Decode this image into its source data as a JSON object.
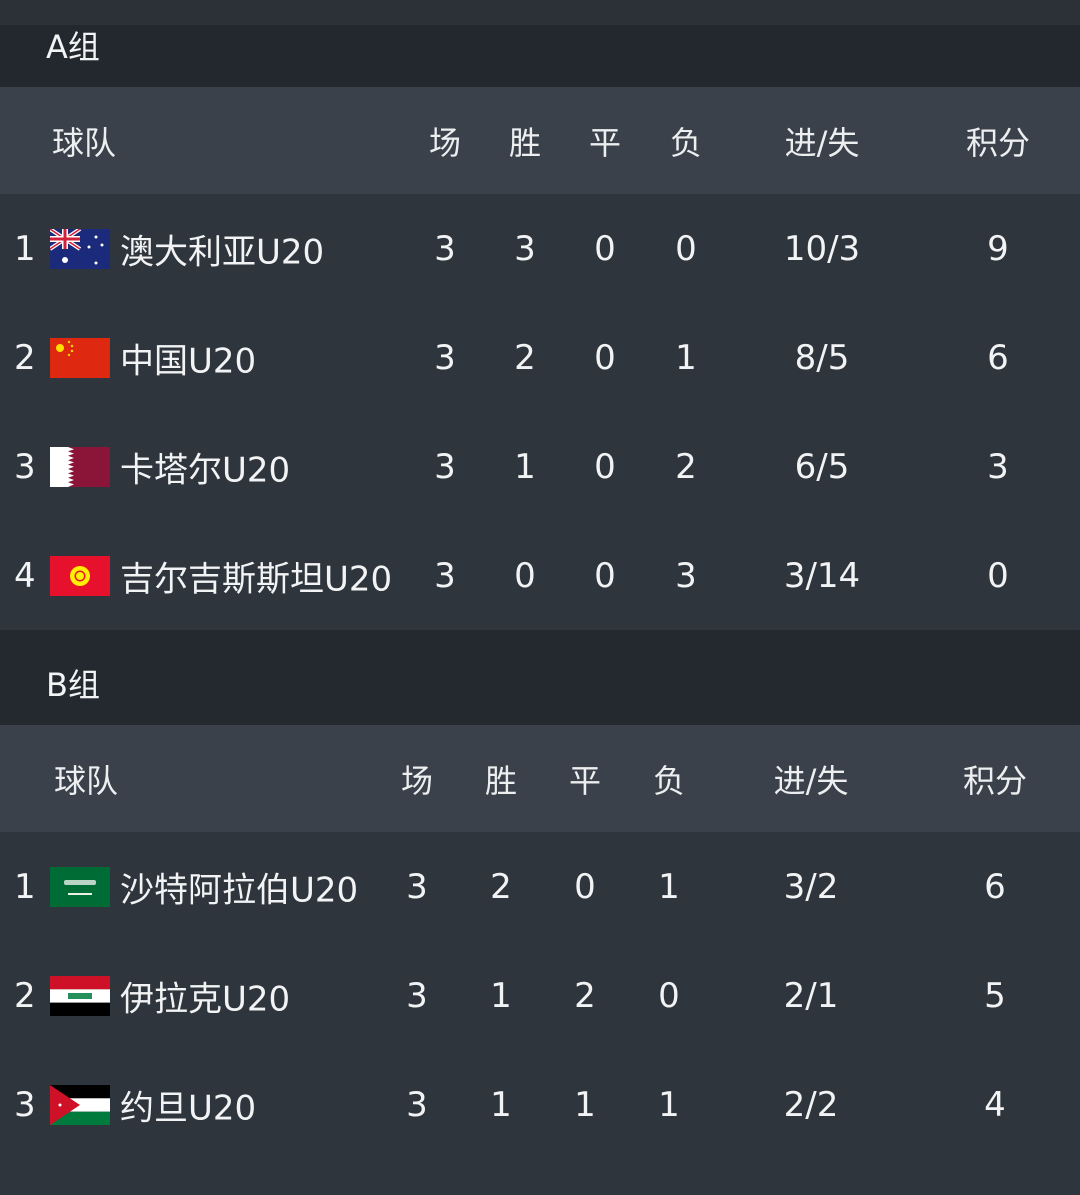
{
  "columns": [
    "场",
    "胜",
    "平",
    "负",
    "进/失",
    "积分"
  ],
  "team_header": "球队",
  "groups": [
    {
      "title": "A组",
      "rows": [
        {
          "rank": "1",
          "flag": "australia-flag-icon",
          "team": "澳大利亚U20",
          "stats": [
            "3",
            "3",
            "0",
            "0",
            "10/3",
            "9"
          ]
        },
        {
          "rank": "2",
          "flag": "china-flag-icon",
          "team": "中国U20",
          "stats": [
            "3",
            "2",
            "0",
            "1",
            "8/5",
            "6"
          ]
        },
        {
          "rank": "3",
          "flag": "qatar-flag-icon",
          "team": "卡塔尔U20",
          "stats": [
            "3",
            "1",
            "0",
            "2",
            "6/5",
            "3"
          ]
        },
        {
          "rank": "4",
          "flag": "kyrgyzstan-flag-icon",
          "team": "吉尔吉斯斯坦U20",
          "stats": [
            "3",
            "0",
            "0",
            "3",
            "3/14",
            "0"
          ]
        }
      ]
    },
    {
      "title": "B组",
      "rows": [
        {
          "rank": "1",
          "flag": "saudi-arabia-flag-icon",
          "team": "沙特阿拉伯U20",
          "stats": [
            "3",
            "2",
            "0",
            "1",
            "3/2",
            "6"
          ]
        },
        {
          "rank": "2",
          "flag": "iraq-flag-icon",
          "team": "伊拉克U20",
          "stats": [
            "3",
            "1",
            "2",
            "0",
            "2/1",
            "5"
          ]
        },
        {
          "rank": "3",
          "flag": "jordan-flag-icon",
          "team": "约旦U20",
          "stats": [
            "3",
            "1",
            "1",
            "1",
            "2/2",
            "4"
          ]
        }
      ]
    }
  ]
}
